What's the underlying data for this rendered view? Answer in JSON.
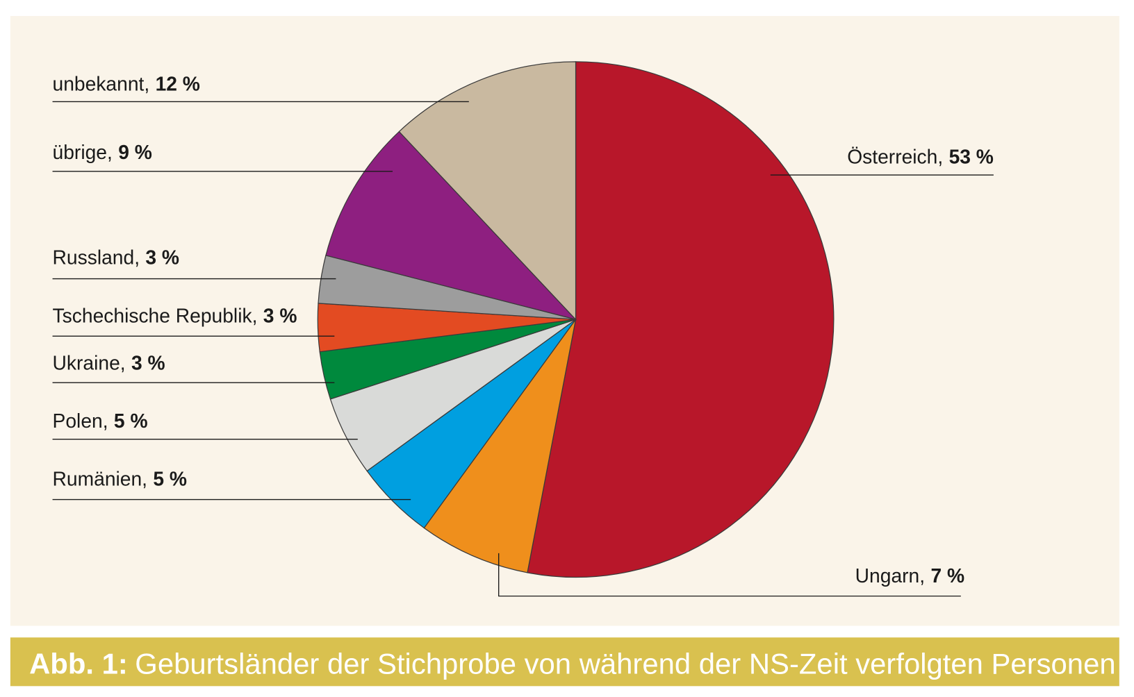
{
  "chart_data": {
    "type": "pie",
    "caption_label": "Abb. 1:",
    "caption": "Geburtsländer der Stichprobe von während der NS-Zeit verfolgten Personen",
    "categories": [
      "Österreich,",
      "Ungarn,",
      "Rumänien,",
      "Polen,",
      "Ukraine,",
      "Tschechische Republik,",
      "Russland,",
      "übrige,",
      "unbekannt,"
    ],
    "values": [
      53,
      7,
      5,
      5,
      3,
      3,
      3,
      9,
      12
    ],
    "value_labels": [
      "53 %",
      "7 %",
      "5 %",
      "5 %",
      "3 %",
      "3 %",
      "3 %",
      "9 %",
      "12 %"
    ],
    "colors": [
      "#b8172a",
      "#ef8f1c",
      "#009fe0",
      "#d9dad8",
      "#00893d",
      "#e34b22",
      "#9d9d9d",
      "#8e1f80",
      "#c9b9a0"
    ]
  }
}
